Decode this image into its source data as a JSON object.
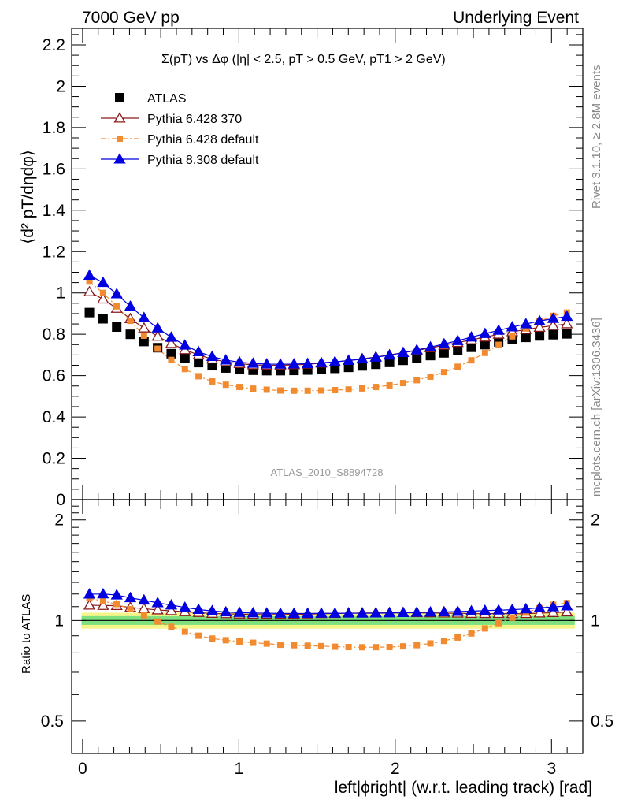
{
  "header": {
    "left": "7000 GeV pp",
    "right": "Underlying Event"
  },
  "side_labels": {
    "upper": "Rivet 3.1.10, ≥ 2.8M events",
    "lower": "mcplots.cern.ch [arXiv:1306.3436]"
  },
  "watermark": "ATLAS_2010_S8894728",
  "chart_data": [
    {
      "type": "scatter",
      "panel": "main",
      "title": "Σ(pT) vs Δφ (|η| < 2.5, pT > 0.5 GeV, pT1 > 2 GeV)",
      "ylabel": "⟨d² pT/dηdφ⟩",
      "ylim": [
        0,
        2.28
      ],
      "yticks": [
        0,
        0.2,
        0.4,
        0.6,
        0.8,
        1,
        1.2,
        1.4,
        1.6,
        1.8,
        2,
        2.2
      ],
      "ytick_labels": [
        "0",
        "0.2",
        "0.4",
        "0.6",
        "0.8",
        "1",
        "1.2",
        "1.4",
        "1.6",
        "1.8",
        "2",
        "2.2"
      ],
      "xlim": [
        -0.07,
        3.2
      ],
      "legend_position": "top-left",
      "x": [
        0.0436,
        0.1309,
        0.2182,
        0.3054,
        0.3927,
        0.48,
        0.5672,
        0.6545,
        0.7418,
        0.829,
        0.9163,
        1.0036,
        1.0908,
        1.1781,
        1.2654,
        1.3526,
        1.4399,
        1.5272,
        1.6144,
        1.7017,
        1.789,
        1.8762,
        1.9635,
        2.0508,
        2.138,
        2.2253,
        2.3126,
        2.3998,
        2.4871,
        2.5744,
        2.6616,
        2.7489,
        2.8362,
        2.9234,
        3.0107,
        3.098
      ],
      "series": [
        {
          "name": "ATLAS",
          "color": "#000000",
          "marker": "square",
          "values": [
            0.905,
            0.875,
            0.835,
            0.8,
            0.765,
            0.735,
            0.706,
            0.683,
            0.663,
            0.648,
            0.637,
            0.63,
            0.626,
            0.624,
            0.624,
            0.625,
            0.627,
            0.63,
            0.635,
            0.64,
            0.647,
            0.655,
            0.664,
            0.674,
            0.685,
            0.697,
            0.71,
            0.723,
            0.737,
            0.75,
            0.763,
            0.775,
            0.785,
            0.792,
            0.798,
            0.802
          ]
        },
        {
          "name": "Pythia 6.428 370",
          "color": "#8b1a1a",
          "marker": "open-triangle",
          "values": [
            1.005,
            0.97,
            0.925,
            0.875,
            0.83,
            0.79,
            0.755,
            0.725,
            0.7,
            0.68,
            0.667,
            0.658,
            0.652,
            0.65,
            0.65,
            0.652,
            0.655,
            0.66,
            0.666,
            0.673,
            0.681,
            0.69,
            0.7,
            0.711,
            0.722,
            0.734,
            0.747,
            0.76,
            0.773,
            0.786,
            0.8,
            0.812,
            0.823,
            0.833,
            0.842,
            0.85
          ]
        },
        {
          "name": "Pythia 6.428 default",
          "color": "#f28b30",
          "marker": "small-square",
          "values": [
            1.055,
            1.0,
            0.935,
            0.865,
            0.793,
            0.73,
            0.676,
            0.632,
            0.597,
            0.572,
            0.556,
            0.545,
            0.537,
            0.532,
            0.528,
            0.527,
            0.527,
            0.528,
            0.53,
            0.533,
            0.538,
            0.545,
            0.553,
            0.564,
            0.578,
            0.595,
            0.617,
            0.643,
            0.674,
            0.71,
            0.749,
            0.79,
            0.828,
            0.862,
            0.889,
            0.905
          ]
        },
        {
          "name": "Pythia 8.308 default",
          "color": "#0000e0",
          "marker": "filled-triangle",
          "values": [
            1.085,
            1.05,
            0.995,
            0.935,
            0.88,
            0.83,
            0.785,
            0.747,
            0.715,
            0.692,
            0.675,
            0.665,
            0.659,
            0.656,
            0.655,
            0.656,
            0.658,
            0.662,
            0.667,
            0.673,
            0.68,
            0.689,
            0.699,
            0.711,
            0.724,
            0.738,
            0.753,
            0.769,
            0.786,
            0.803,
            0.819,
            0.835,
            0.85,
            0.864,
            0.876,
            0.886
          ]
        }
      ]
    },
    {
      "type": "scatter",
      "panel": "ratio",
      "ylabel": "Ratio to ATLAS",
      "ylim": [
        0.4,
        2.3
      ],
      "log_y": true,
      "yticks": [
        0.5,
        1,
        2
      ],
      "ytick_labels": [
        "0.5",
        "1",
        "2"
      ],
      "xlim": [
        -0.07,
        3.2
      ],
      "xticks": [
        0,
        1,
        2,
        3
      ],
      "xtick_labels": [
        "0",
        "1",
        "2",
        "3"
      ],
      "xlabel": "left|ϕright| (w.r.t. leading track) [rad]",
      "band_colors": {
        "inner": "#7fe07f",
        "outer": "#f5f58a"
      },
      "band_inner": [
        0.97,
        1.03
      ],
      "band_outer": [
        0.945,
        1.055
      ]
    }
  ]
}
